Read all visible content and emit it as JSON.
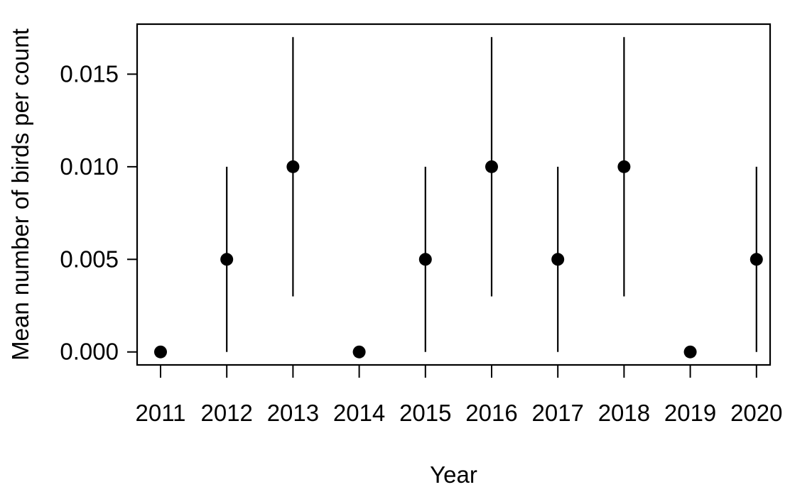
{
  "chart_data": {
    "type": "scatter",
    "title": "",
    "xlabel": "Year",
    "ylabel": "Mean number of birds per count",
    "x": [
      2011,
      2012,
      2013,
      2014,
      2015,
      2016,
      2017,
      2018,
      2019,
      2020
    ],
    "x_tick_labels": [
      "2011",
      "2012",
      "2013",
      "2014",
      "2015",
      "2016",
      "2017",
      "2018",
      "2019",
      "2020"
    ],
    "y": [
      0.0,
      0.005,
      0.01,
      0.0,
      0.005,
      0.01,
      0.005,
      0.01,
      0.0,
      0.005
    ],
    "error_lower": [
      0.0,
      0.0,
      0.003,
      0.0,
      0.0,
      0.003,
      0.0,
      0.003,
      0.0,
      0.0
    ],
    "error_upper": [
      0.0,
      0.01,
      0.017,
      0.0,
      0.01,
      0.017,
      0.01,
      0.017,
      0.0,
      0.01
    ],
    "y_ticks": [
      0.0,
      0.005,
      0.01,
      0.015
    ],
    "y_tick_labels": [
      "0.000",
      "0.005",
      "0.010",
      "0.015"
    ],
    "ylim": [
      -0.0007,
      0.0177
    ],
    "grid": false,
    "legend": "none",
    "colors": {
      "points": "#000000",
      "error_bars": "#000000",
      "frame": "#000000"
    }
  }
}
